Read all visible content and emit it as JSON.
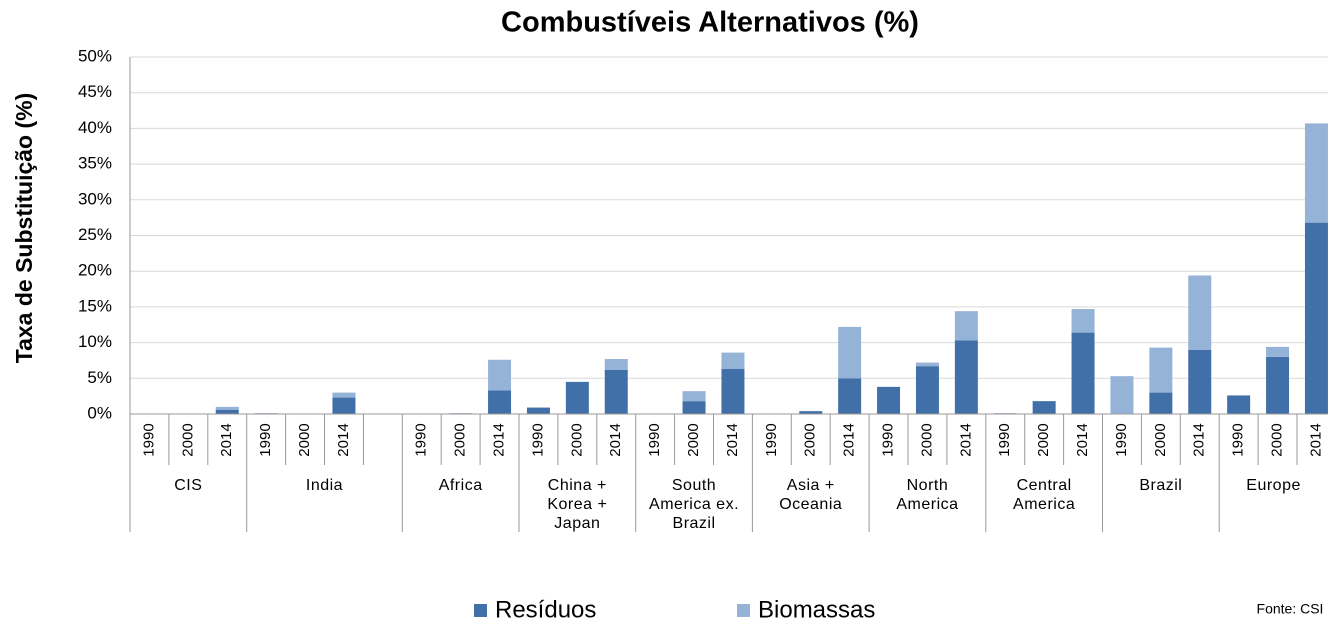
{
  "chart_data": {
    "type": "bar",
    "stacked": true,
    "title": "Combustíveis Alternativos  (%)",
    "y_label": "Taxa de Substituição (%)",
    "source": "Fonte: CSI",
    "groups": [
      {
        "name": "CIS",
        "categories": [
          "1990",
          "2000",
          "2014"
        ]
      },
      {
        "name": "India",
        "categories": [
          "1990",
          "2000",
          "2014",
          null
        ]
      },
      {
        "name": "Africa",
        "categories": [
          "1990",
          "2000",
          "2014"
        ]
      },
      {
        "name": "China +\nKorea +\nJapan",
        "categories": [
          "1990",
          "2000",
          "2014"
        ]
      },
      {
        "name": "South\nAmerica ex.\nBrazil",
        "categories": [
          "1990",
          "2000",
          "2014"
        ]
      },
      {
        "name": "Asia +\nOceania",
        "categories": [
          "1990",
          "2000",
          "2014"
        ]
      },
      {
        "name": "North\nAmerica",
        "categories": [
          "1990",
          "2000",
          "2014"
        ]
      },
      {
        "name": "Central\nAmerica",
        "categories": [
          "1990",
          "2000",
          "2014"
        ]
      },
      {
        "name": "Brazil",
        "categories": [
          "1990",
          "2000",
          "2014"
        ]
      },
      {
        "name": "Europe",
        "categories": [
          "1990",
          "2000",
          "2014"
        ]
      }
    ],
    "series": [
      {
        "name": "Resíduos",
        "color": "#4170a8",
        "values": [
          0,
          0,
          0.6,
          0.1,
          0,
          2.3,
          null,
          0,
          0.1,
          3.3,
          0.9,
          4.5,
          6.2,
          0,
          1.8,
          6.3,
          0,
          0.4,
          5.0,
          3.8,
          6.7,
          10.3,
          0.1,
          1.8,
          11.4,
          0,
          3.0,
          9.0,
          2.6,
          8.0,
          26.8
        ]
      },
      {
        "name": "Biomassas",
        "color": "#95b3d7",
        "values": [
          0,
          0,
          0.4,
          0,
          0,
          0.7,
          null,
          0,
          0,
          4.3,
          0,
          0,
          1.5,
          0,
          1.4,
          2.3,
          0,
          0,
          7.2,
          0,
          0.5,
          4.1,
          0,
          0,
          3.3,
          5.3,
          6.3,
          10.4,
          0,
          1.4,
          13.9
        ]
      }
    ],
    "ylim": [
      0,
      50
    ],
    "yticks": [
      {
        "value": 0,
        "label": "0%"
      },
      {
        "value": 5,
        "label": "5%"
      },
      {
        "value": 10,
        "label": "10%"
      },
      {
        "value": 15,
        "label": "15%"
      },
      {
        "value": 20,
        "label": "20%"
      },
      {
        "value": 25,
        "label": "25%"
      },
      {
        "value": 30,
        "label": "30%"
      },
      {
        "value": 35,
        "label": "35%"
      },
      {
        "value": 40,
        "label": "40%"
      },
      {
        "value": 45,
        "label": "45%"
      },
      {
        "value": 50,
        "label": "50%"
      }
    ],
    "grid": true
  }
}
